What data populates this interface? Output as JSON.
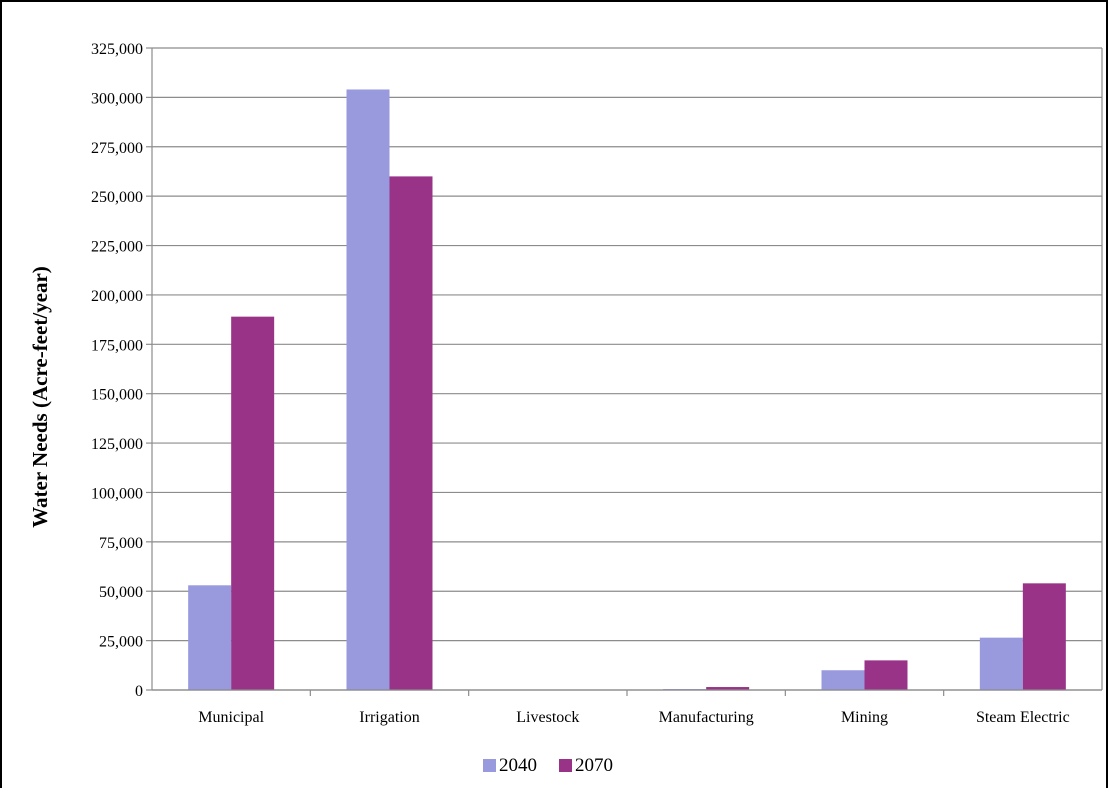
{
  "chart_data": {
    "type": "bar",
    "ylabel": "Water Needs (Acre-feet/year)",
    "xlabel": "",
    "categories": [
      "Municipal",
      "Irrigation",
      "Livestock",
      "Manufacturing",
      "Mining",
      "Steam Electric"
    ],
    "series": [
      {
        "name": "2040",
        "color": "#9999dd",
        "values": [
          53000,
          304000,
          0,
          500,
          10000,
          26500
        ]
      },
      {
        "name": "2070",
        "color": "#993388",
        "values": [
          189000,
          260000,
          0,
          1500,
          15000,
          54000
        ]
      }
    ],
    "ylim": [
      0,
      325000
    ],
    "yticks": [
      0,
      25000,
      50000,
      75000,
      100000,
      125000,
      150000,
      175000,
      200000,
      225000,
      250000,
      275000,
      300000,
      325000
    ],
    "ytick_labels": [
      "0",
      "25,000",
      "50,000",
      "75,000",
      "100,000",
      "125,000",
      "150,000",
      "175,000",
      "200,000",
      "225,000",
      "250,000",
      "275,000",
      "300,000",
      "325,000"
    ],
    "grid": true,
    "legend_position": "bottom"
  }
}
